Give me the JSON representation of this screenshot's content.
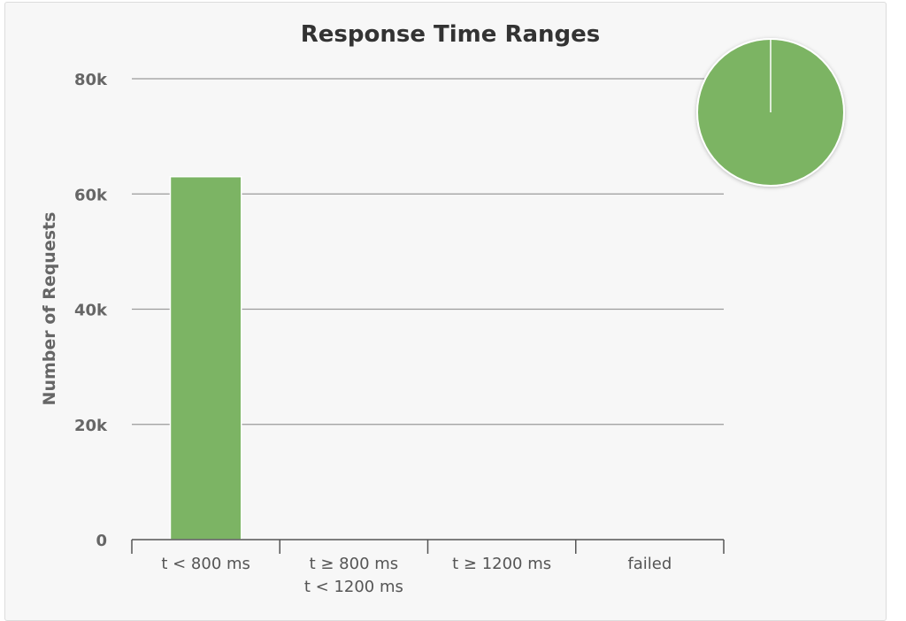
{
  "chart_data": {
    "type": "bar",
    "title": "Response Time Ranges",
    "ylabel": "Number of Requests",
    "xlabel": "",
    "categories": [
      [
        "t < 800 ms"
      ],
      [
        "t ≥ 800 ms",
        "t < 1200 ms"
      ],
      [
        "t ≥ 1200 ms"
      ],
      [
        "failed"
      ]
    ],
    "values": [
      63000,
      0,
      0,
      0
    ],
    "ylim": [
      0,
      80000
    ],
    "yticks": [
      0,
      20000,
      40000,
      60000,
      80000
    ],
    "ytick_labels": [
      "0",
      "20k",
      "40k",
      "60k",
      "80k"
    ],
    "grid": true,
    "bar_color": "#7cb464",
    "pie": {
      "slices": [
        {
          "label": "t < 800 ms",
          "value": 63000,
          "color": "#7cb464"
        }
      ]
    }
  }
}
